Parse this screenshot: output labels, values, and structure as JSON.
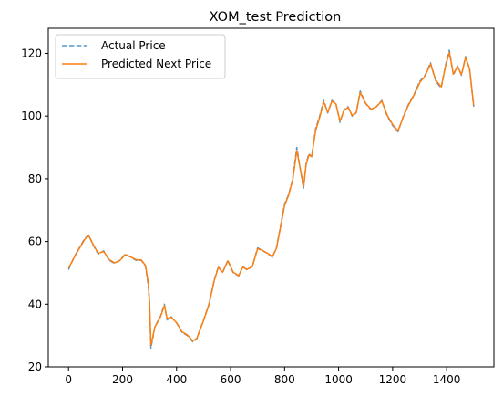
{
  "chart_data": {
    "type": "line",
    "title": "XOM_test Prediction",
    "xlabel": "",
    "ylabel": "",
    "xlim": [
      -75,
      1575
    ],
    "ylim": [
      20,
      128
    ],
    "x_ticks": [
      0,
      200,
      400,
      600,
      800,
      1000,
      1200,
      1400
    ],
    "y_ticks": [
      20,
      40,
      60,
      80,
      100,
      120
    ],
    "grid": false,
    "legend_position": "top-left",
    "series": [
      {
        "name": "Actual Price",
        "color": "#1f77b4",
        "style": "dashed",
        "x": [
          0,
          20,
          40,
          60,
          75,
          90,
          110,
          130,
          150,
          170,
          190,
          210,
          230,
          250,
          270,
          285,
          295,
          300,
          305,
          320,
          340,
          355,
          365,
          380,
          400,
          420,
          440,
          460,
          475,
          500,
          520,
          540,
          555,
          570,
          590,
          610,
          630,
          645,
          660,
          680,
          700,
          720,
          740,
          755,
          770,
          785,
          800,
          815,
          830,
          845,
          860,
          870,
          880,
          890,
          900,
          915,
          930,
          945,
          960,
          975,
          990,
          1005,
          1020,
          1035,
          1050,
          1065,
          1080,
          1100,
          1120,
          1140,
          1160,
          1180,
          1200,
          1220,
          1240,
          1260,
          1280,
          1300,
          1320,
          1340,
          1360,
          1380,
          1395,
          1410,
          1425,
          1440,
          1455,
          1470,
          1485,
          1500
        ],
        "values": [
          51,
          55,
          58,
          61,
          62,
          59,
          56,
          57,
          54,
          53,
          54,
          56,
          55,
          54,
          54,
          52,
          46,
          40,
          26,
          33,
          36,
          40,
          35,
          36,
          34,
          31,
          30,
          28,
          29,
          35,
          40,
          48,
          52,
          50,
          54,
          50,
          49,
          52,
          51,
          52,
          58,
          57,
          56,
          55,
          58,
          65,
          72,
          75,
          80,
          90,
          82,
          77,
          85,
          88,
          87,
          96,
          100,
          105,
          101,
          105,
          104,
          98,
          102,
          103,
          100,
          101,
          108,
          104,
          102,
          103,
          105,
          100,
          97,
          95,
          100,
          104,
          107,
          111,
          113,
          117,
          111,
          109,
          116,
          121,
          113,
          116,
          113,
          119,
          115,
          103
        ]
      },
      {
        "name": "Predicted Next Price",
        "color": "#ff7f0e",
        "style": "solid",
        "x": [
          0,
          20,
          40,
          60,
          75,
          90,
          110,
          130,
          150,
          170,
          190,
          210,
          230,
          250,
          270,
          285,
          295,
          300,
          305,
          320,
          340,
          355,
          365,
          380,
          400,
          420,
          440,
          460,
          475,
          500,
          520,
          540,
          555,
          570,
          590,
          610,
          630,
          645,
          660,
          680,
          700,
          720,
          740,
          755,
          770,
          785,
          800,
          815,
          830,
          845,
          860,
          870,
          880,
          890,
          900,
          915,
          930,
          945,
          960,
          975,
          990,
          1005,
          1020,
          1035,
          1050,
          1065,
          1080,
          1100,
          1120,
          1140,
          1160,
          1180,
          1200,
          1220,
          1240,
          1260,
          1280,
          1300,
          1320,
          1340,
          1360,
          1380,
          1395,
          1410,
          1425,
          1440,
          1455,
          1470,
          1485,
          1500
        ],
        "values": [
          51.5,
          54.8,
          57.8,
          60.7,
          61.8,
          59.2,
          56.2,
          56.8,
          54.3,
          53.2,
          53.9,
          55.8,
          55.1,
          54.2,
          54.1,
          52.3,
          46.8,
          41,
          27,
          32.8,
          35.9,
          39.6,
          35.3,
          35.9,
          34.1,
          31.2,
          30.2,
          28.3,
          29.1,
          34.8,
          39.8,
          47.7,
          51.8,
          50.2,
          53.8,
          50.2,
          49.1,
          51.8,
          51.1,
          51.9,
          57.7,
          57.1,
          56.1,
          55.2,
          57.8,
          64.6,
          71.5,
          74.8,
          79.6,
          89,
          82.3,
          77.5,
          84.6,
          87.6,
          87.1,
          95.4,
          99.6,
          104.5,
          101.2,
          104.7,
          103.9,
          98.4,
          101.8,
          102.8,
          100.2,
          101.1,
          107.5,
          104.1,
          102.2,
          103,
          104.8,
          100.3,
          97.3,
          95.3,
          99.8,
          103.7,
          106.8,
          110.6,
          112.8,
          116.6,
          111.4,
          109.3,
          115.6,
          120.3,
          113.4,
          115.8,
          113.3,
          118.6,
          115.2,
          103.4
        ]
      }
    ]
  }
}
